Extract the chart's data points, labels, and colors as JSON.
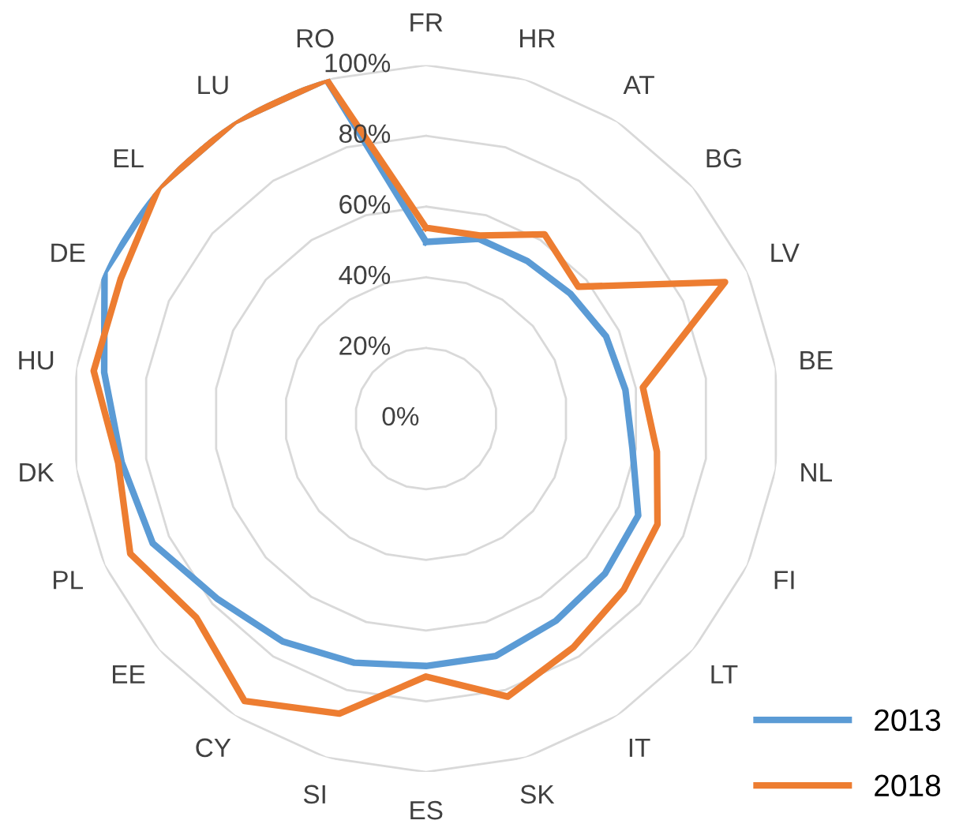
{
  "chart_data": {
    "type": "radar",
    "categories": [
      "FR",
      "HR",
      "AT",
      "BG",
      "LV",
      "BE",
      "NL",
      "FI",
      "LT",
      "IT",
      "SK",
      "ES",
      "SI",
      "CY",
      "EE",
      "PL",
      "DK",
      "HU",
      "DE",
      "EL",
      "LU",
      "RO"
    ],
    "series": [
      {
        "name": "2013",
        "color": "#5b9bd5",
        "values": [
          50,
          53,
          53,
          54,
          56,
          57,
          59,
          66,
          67,
          68,
          70,
          70,
          72,
          75,
          78,
          85,
          87,
          92,
          100,
          100,
          100,
          100
        ]
      },
      {
        "name": "2018",
        "color": "#ed7d31",
        "values": [
          54,
          54,
          62,
          57,
          93,
          62,
          66,
          72,
          74,
          77,
          82,
          73,
          87,
          95,
          86,
          92,
          88,
          95,
          95,
          100,
          100,
          100
        ]
      }
    ],
    "ylim": [
      0,
      100
    ],
    "yticks": [
      {
        "value": 0,
        "label": "0%"
      },
      {
        "value": 20,
        "label": "20%"
      },
      {
        "value": 40,
        "label": "40%"
      },
      {
        "value": 60,
        "label": "60%"
      },
      {
        "value": 80,
        "label": "80%"
      },
      {
        "value": 100,
        "label": "100%"
      }
    ],
    "grid": true,
    "legend": "bottom right",
    "marker": "none",
    "line_style": "solid"
  }
}
